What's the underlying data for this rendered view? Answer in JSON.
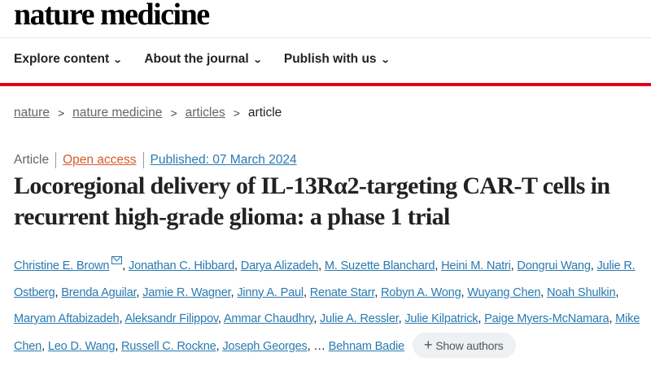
{
  "header": {
    "logo": "nature medicine"
  },
  "nav": [
    {
      "label": "Explore content"
    },
    {
      "label": "About the journal"
    },
    {
      "label": "Publish with us"
    }
  ],
  "breadcrumb": {
    "items": [
      "nature",
      "nature medicine",
      "articles"
    ],
    "current": "article"
  },
  "meta": {
    "type": "Article",
    "access": "Open access",
    "published": "Published: 07 March 2024"
  },
  "title": "Locoregional delivery of IL-13Rα2-targeting CAR-T cells in recurrent high-grade glioma: a phase 1 trial",
  "authors": [
    "Christine E. Brown",
    "Jonathan C. Hibbard",
    "Darya Alizadeh",
    "M. Suzette Blanchard",
    "Heini M. Natri",
    "Dongrui Wang",
    "Julie R. Ostberg",
    "Brenda Aguilar",
    "Jamie R. Wagner",
    "Jinny A. Paul",
    "Renate Starr",
    "Robyn A. Wong",
    "Wuyang Chen",
    "Noah Shulkin",
    "Maryam Aftabizadeh",
    "Aleksandr Filippov",
    "Ammar Chaudhry",
    "Julie A. Ressler",
    "Julie Kilpatrick",
    "Paige Myers-McNamara",
    "Mike Chen",
    "Leo D. Wang",
    "Russell C. Rockne",
    "Joseph Georges"
  ],
  "ellipsis": "…",
  "last_author": "Behnam Badie",
  "show_authors": "Show authors",
  "colors": {
    "accent_red": "#e3001b",
    "link_blue": "#2a7ab0",
    "open_access": "#d85a2a"
  }
}
